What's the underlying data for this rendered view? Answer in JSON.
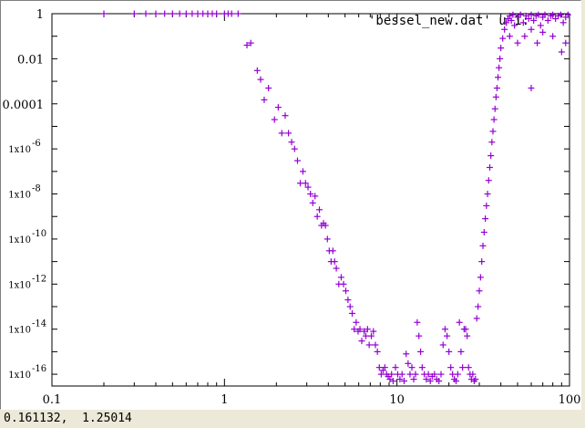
{
  "window": {
    "status_coords": "0.161132,  1.25014"
  },
  "chart_data": {
    "type": "scatter",
    "title": "",
    "xlabel": "",
    "ylabel": "",
    "xscale": "log",
    "yscale": "log",
    "xlim": [
      0.1,
      100
    ],
    "ylim": [
      3e-17,
      1
    ],
    "grid": false,
    "legend": {
      "placement": "top-right",
      "label": "'bessel_new.dat' u 1:"
    },
    "marker": "+",
    "color": "#9400d3",
    "x_ticks": [
      {
        "value": 0.1,
        "label": "0.1"
      },
      {
        "value": 1,
        "label": "1"
      },
      {
        "value": 10,
        "label": "10"
      },
      {
        "value": 100,
        "label": "100"
      }
    ],
    "y_ticks": [
      {
        "value": 1,
        "label": "1",
        "superscript": ""
      },
      {
        "value": 0.01,
        "label": "0.01",
        "superscript": ""
      },
      {
        "value": 0.0001,
        "label": "0.0001",
        "superscript": ""
      },
      {
        "value": 1e-06,
        "label": "1x10",
        "superscript": "-6"
      },
      {
        "value": 1e-08,
        "label": "1x10",
        "superscript": "-8"
      },
      {
        "value": 1e-10,
        "label": "1x10",
        "superscript": "-10"
      },
      {
        "value": 1e-12,
        "label": "1x10",
        "superscript": "-12"
      },
      {
        "value": 1e-14,
        "label": "1x10",
        "superscript": "-14"
      },
      {
        "value": 1e-16,
        "label": "1x10",
        "superscript": "-16"
      }
    ],
    "series": [
      {
        "points": [
          [
            0.2,
            1.0
          ],
          [
            0.3,
            1.0
          ],
          [
            0.35,
            1.0
          ],
          [
            0.4,
            1.0
          ],
          [
            0.45,
            1.0
          ],
          [
            0.5,
            1.0
          ],
          [
            0.55,
            1.0
          ],
          [
            0.6,
            1.0
          ],
          [
            0.65,
            1.0
          ],
          [
            0.7,
            1.0
          ],
          [
            0.75,
            1.0
          ],
          [
            0.8,
            1.0
          ],
          [
            0.85,
            1.0
          ],
          [
            0.9,
            1.0
          ],
          [
            1.0,
            1.0
          ],
          [
            1.05,
            1.0
          ],
          [
            1.1,
            1.0
          ],
          [
            1.2,
            1.0
          ],
          [
            1.35,
            0.04
          ],
          [
            1.42,
            0.05
          ],
          [
            1.55,
            0.003
          ],
          [
            1.62,
            0.0012
          ],
          [
            1.7,
            0.00015
          ],
          [
            1.8,
            0.0005
          ],
          [
            1.95,
            2e-05
          ],
          [
            2.05,
            7e-05
          ],
          [
            2.15,
            5e-06
          ],
          [
            2.25,
            3e-05
          ],
          [
            2.35,
            5e-06
          ],
          [
            2.45,
            2e-06
          ],
          [
            2.55,
            1e-06
          ],
          [
            2.65,
            3e-07
          ],
          [
            2.75,
            3e-08
          ],
          [
            2.85,
            1e-07
          ],
          [
            2.95,
            3e-08
          ],
          [
            3.05,
            2e-08
          ],
          [
            3.15,
            1e-08
          ],
          [
            3.25,
            4e-09
          ],
          [
            3.35,
            8e-09
          ],
          [
            3.45,
            1e-09
          ],
          [
            3.55,
            2e-09
          ],
          [
            3.65,
            4e-10
          ],
          [
            3.75,
            5e-10
          ],
          [
            3.85,
            4e-10
          ],
          [
            3.95,
            1e-10
          ],
          [
            4.05,
            3e-11
          ],
          [
            4.15,
            1e-11
          ],
          [
            4.25,
            3e-11
          ],
          [
            4.35,
            1e-11
          ],
          [
            4.45,
            5e-12
          ],
          [
            4.6,
            1e-12
          ],
          [
            4.75,
            2e-12
          ],
          [
            4.9,
            1e-12
          ],
          [
            5.05,
            5e-13
          ],
          [
            5.2,
            2e-13
          ],
          [
            5.35,
            1e-13
          ],
          [
            5.5,
            5e-14
          ],
          [
            5.65,
            1e-14
          ],
          [
            5.8,
            2e-14
          ],
          [
            5.95,
            8e-15
          ],
          [
            6.1,
            1e-14
          ],
          [
            6.25,
            3e-15
          ],
          [
            6.45,
            8e-15
          ],
          [
            6.6,
            5e-15
          ],
          [
            6.75,
            1e-14
          ],
          [
            6.9,
            2e-15
          ],
          [
            7.1,
            5e-15
          ],
          [
            7.3,
            8e-15
          ],
          [
            7.5,
            2e-15
          ],
          [
            7.7,
            1e-15
          ],
          [
            7.9,
            2e-16
          ],
          [
            8.1,
            1e-16
          ],
          [
            8.3,
            1.5e-16
          ],
          [
            8.5,
            2e-16
          ],
          [
            8.7,
            1e-16
          ],
          [
            8.9,
            8e-17
          ],
          [
            9.1,
            6e-17
          ],
          [
            9.3,
            1e-16
          ],
          [
            9.5,
            5e-17
          ],
          [
            9.8,
            2e-16
          ],
          [
            10.1,
            1e-16
          ],
          [
            10.4,
            6e-17
          ],
          [
            10.7,
            1e-16
          ],
          [
            11.0,
            5e-17
          ],
          [
            11.3,
            8e-16
          ],
          [
            11.6,
            3e-16
          ],
          [
            11.9,
            1e-16
          ],
          [
            12.2,
            2e-16
          ],
          [
            12.5,
            6e-17
          ],
          [
            12.8,
            1e-16
          ],
          [
            13.1,
            2e-14
          ],
          [
            13.4,
            5e-15
          ],
          [
            13.7,
            1e-15
          ],
          [
            14.0,
            2e-16
          ],
          [
            14.4,
            1e-16
          ],
          [
            14.8,
            6e-17
          ],
          [
            15.2,
            1e-16
          ],
          [
            15.6,
            5e-17
          ],
          [
            16.0,
            8e-17
          ],
          [
            16.5,
            1e-16
          ],
          [
            17.0,
            6e-17
          ],
          [
            17.5,
            5e-17
          ],
          [
            18.0,
            1e-16
          ],
          [
            18.5,
            2e-15
          ],
          [
            19.0,
            1e-14
          ],
          [
            19.5,
            5e-15
          ],
          [
            20.0,
            1e-15
          ],
          [
            20.5,
            2e-16
          ],
          [
            21.0,
            1e-16
          ],
          [
            21.5,
            6e-17
          ],
          [
            22.0,
            5e-17
          ],
          [
            22.5,
            1e-16
          ],
          [
            23.0,
            2e-14
          ],
          [
            23.5,
            1e-15
          ],
          [
            24.0,
            2e-16
          ],
          [
            24.5,
            1e-14
          ],
          [
            25.0,
            1e-14
          ],
          [
            25.5,
            5e-15
          ],
          [
            26.0,
            2e-16
          ],
          [
            26.5,
            1e-16
          ],
          [
            27.0,
            6e-17
          ],
          [
            27.5,
            1e-16
          ],
          [
            28.0,
            5e-17
          ],
          [
            28.5,
            6e-17
          ],
          [
            29.0,
            3e-14
          ],
          [
            29.5,
            1e-13
          ],
          [
            30.0,
            5e-13
          ],
          [
            30.5,
            2e-12
          ],
          [
            31.0,
            1e-11
          ],
          [
            31.5,
            5e-11
          ],
          [
            32.0,
            2e-10
          ],
          [
            32.5,
            8e-10
          ],
          [
            33.0,
            3e-09
          ],
          [
            33.5,
            1e-08
          ],
          [
            34.0,
            4e-08
          ],
          [
            34.5,
            1.5e-07
          ],
          [
            35.0,
            5e-07
          ],
          [
            35.5,
            2e-06
          ],
          [
            36.0,
            6e-06
          ],
          [
            36.5,
            2e-05
          ],
          [
            37.0,
            6e-05
          ],
          [
            37.5,
            0.0002
          ],
          [
            38.0,
            0.0005
          ],
          [
            38.5,
            0.0015
          ],
          [
            39.0,
            0.004
          ],
          [
            39.5,
            0.01
          ],
          [
            40.0,
            0.03
          ],
          [
            41.0,
            0.08
          ],
          [
            42.0,
            0.2
          ],
          [
            43.0,
            0.4
          ],
          [
            44.0,
            0.6
          ],
          [
            45.0,
            0.8
          ],
          [
            46.0,
            0.5
          ],
          [
            47.0,
            0.9
          ],
          [
            48.0,
            0.3
          ],
          [
            50.0,
            0.7
          ],
          [
            52.0,
            0.9
          ],
          [
            54.0,
            0.4
          ],
          [
            56.0,
            0.8
          ],
          [
            58.0,
            0.6
          ],
          [
            60.0,
            0.9
          ],
          [
            62.0,
            0.5
          ],
          [
            64.0,
            0.8
          ],
          [
            66.0,
            0.9
          ],
          [
            68.0,
            0.3
          ],
          [
            70.0,
            0.7
          ],
          [
            72.0,
            0.9
          ],
          [
            75.0,
            0.5
          ],
          [
            78.0,
            0.8
          ],
          [
            80.0,
            0.9
          ],
          [
            83.0,
            0.6
          ],
          [
            86.0,
            0.8
          ],
          [
            89.0,
            0.9
          ],
          [
            92.0,
            0.4
          ],
          [
            95.0,
            0.7
          ],
          [
            98.0,
            0.9
          ],
          [
            45.0,
            0.1
          ],
          [
            50.0,
            0.05
          ],
          [
            55.0,
            0.1
          ],
          [
            60.0,
            0.2
          ],
          [
            65.0,
            0.05
          ],
          [
            70.0,
            0.15
          ],
          [
            80.0,
            0.1
          ],
          [
            90.0,
            0.02
          ],
          [
            95.0,
            0.05
          ],
          [
            60.0,
            0.0005
          ]
        ]
      }
    ]
  }
}
